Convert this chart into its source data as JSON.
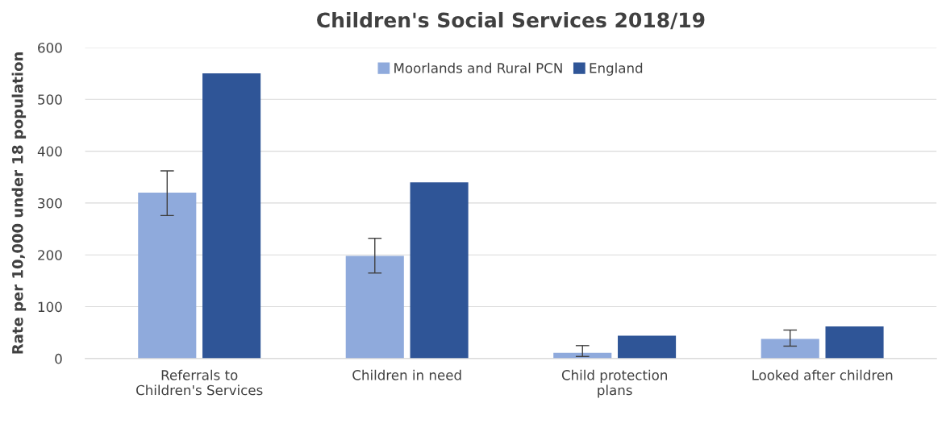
{
  "chart_data": {
    "type": "bar",
    "title": "Children's Social Services 2018/19",
    "ylabel": "Rate per 10,000 under 18 population",
    "categories": [
      "Referrals to\nChildren's Services",
      "Children in need",
      "Child protection\nplans",
      "Looked after children"
    ],
    "series": [
      {
        "name": "Moorlands and Rural PCN",
        "color": "#8faadc",
        "values": [
          320,
          198,
          11,
          38
        ],
        "errors": [
          [
            276,
            362
          ],
          [
            165,
            232
          ],
          [
            4,
            25
          ],
          [
            24,
            55
          ]
        ]
      },
      {
        "name": "England",
        "color": "#2f5597",
        "values": [
          550,
          340,
          44,
          62
        ]
      }
    ],
    "ylim": [
      0,
      600
    ],
    "yticks": [
      0,
      100,
      200,
      300,
      400,
      500,
      600
    ],
    "grid": "y",
    "legend": "top"
  }
}
